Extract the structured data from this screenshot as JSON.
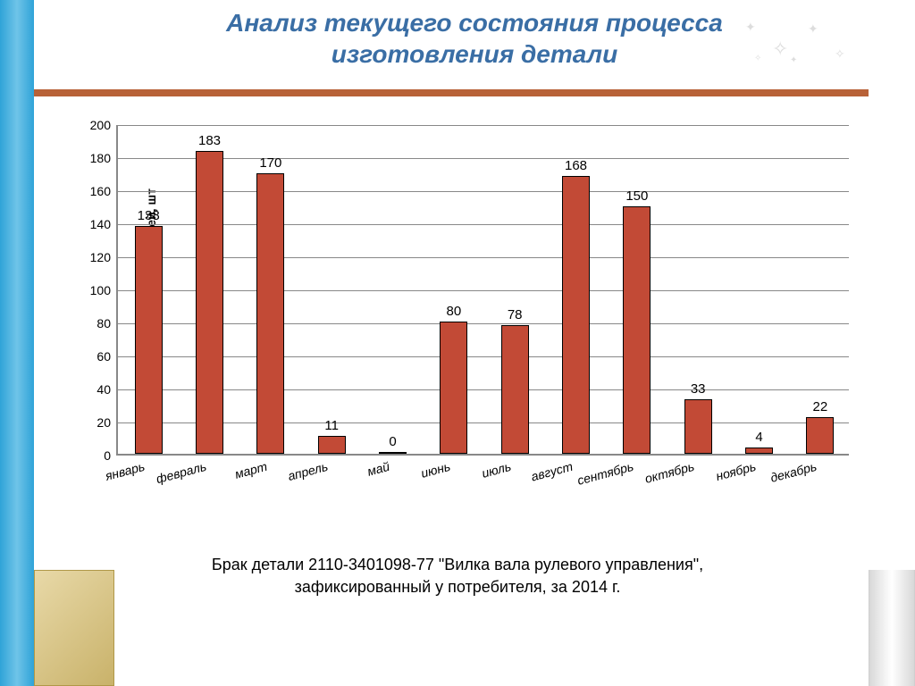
{
  "slide": {
    "title_line1": "Анализ текущего состояния процесса",
    "title_line2": "изготовления детали",
    "title_color": "#3a6ea5",
    "title_fontsize": 28,
    "rule_color": "#b86238",
    "left_stripe_colors": [
      "#2fa3d8",
      "#6fc4e8"
    ],
    "accent_box_colors": [
      "#e8d9a8",
      "#c9b26a"
    ],
    "right_stripe_colors": [
      "#d8d8d8",
      "#ffffff"
    ],
    "background_color": "#ffffff"
  },
  "chart": {
    "type": "bar",
    "ylabel": "количество забракованных деталей, шт",
    "ylabel_fontsize": 14,
    "ylim": [
      0,
      200
    ],
    "ytick_step": 20,
    "yticks": [
      0,
      20,
      40,
      60,
      80,
      100,
      120,
      140,
      160,
      180,
      200
    ],
    "categories": [
      "январь",
      "февраль",
      "март",
      "апрель",
      "май",
      "июнь",
      "июль",
      "август",
      "сентябрь",
      "октябрь",
      "ноябрь",
      "декабрь"
    ],
    "values": [
      138,
      183,
      170,
      11,
      0,
      80,
      78,
      168,
      150,
      33,
      4,
      22
    ],
    "bar_color": "#c24a36",
    "bar_border_color": "#000000",
    "bar_width_ratio": 0.45,
    "grid_color": "#888888",
    "axis_color": "#888888",
    "label_fontsize": 15,
    "xtick_fontsize": 14,
    "xtick_rotation_deg": -15,
    "xtick_font_style": "italic",
    "plot_background": "#ffffff"
  },
  "caption": {
    "line1": "Брак детали 2110-3401098-77 \"Вилка вала рулевого управления\",",
    "line2": "зафиксированный у потребителя, за 2014 г.",
    "fontsize": 18,
    "color": "#000000"
  }
}
